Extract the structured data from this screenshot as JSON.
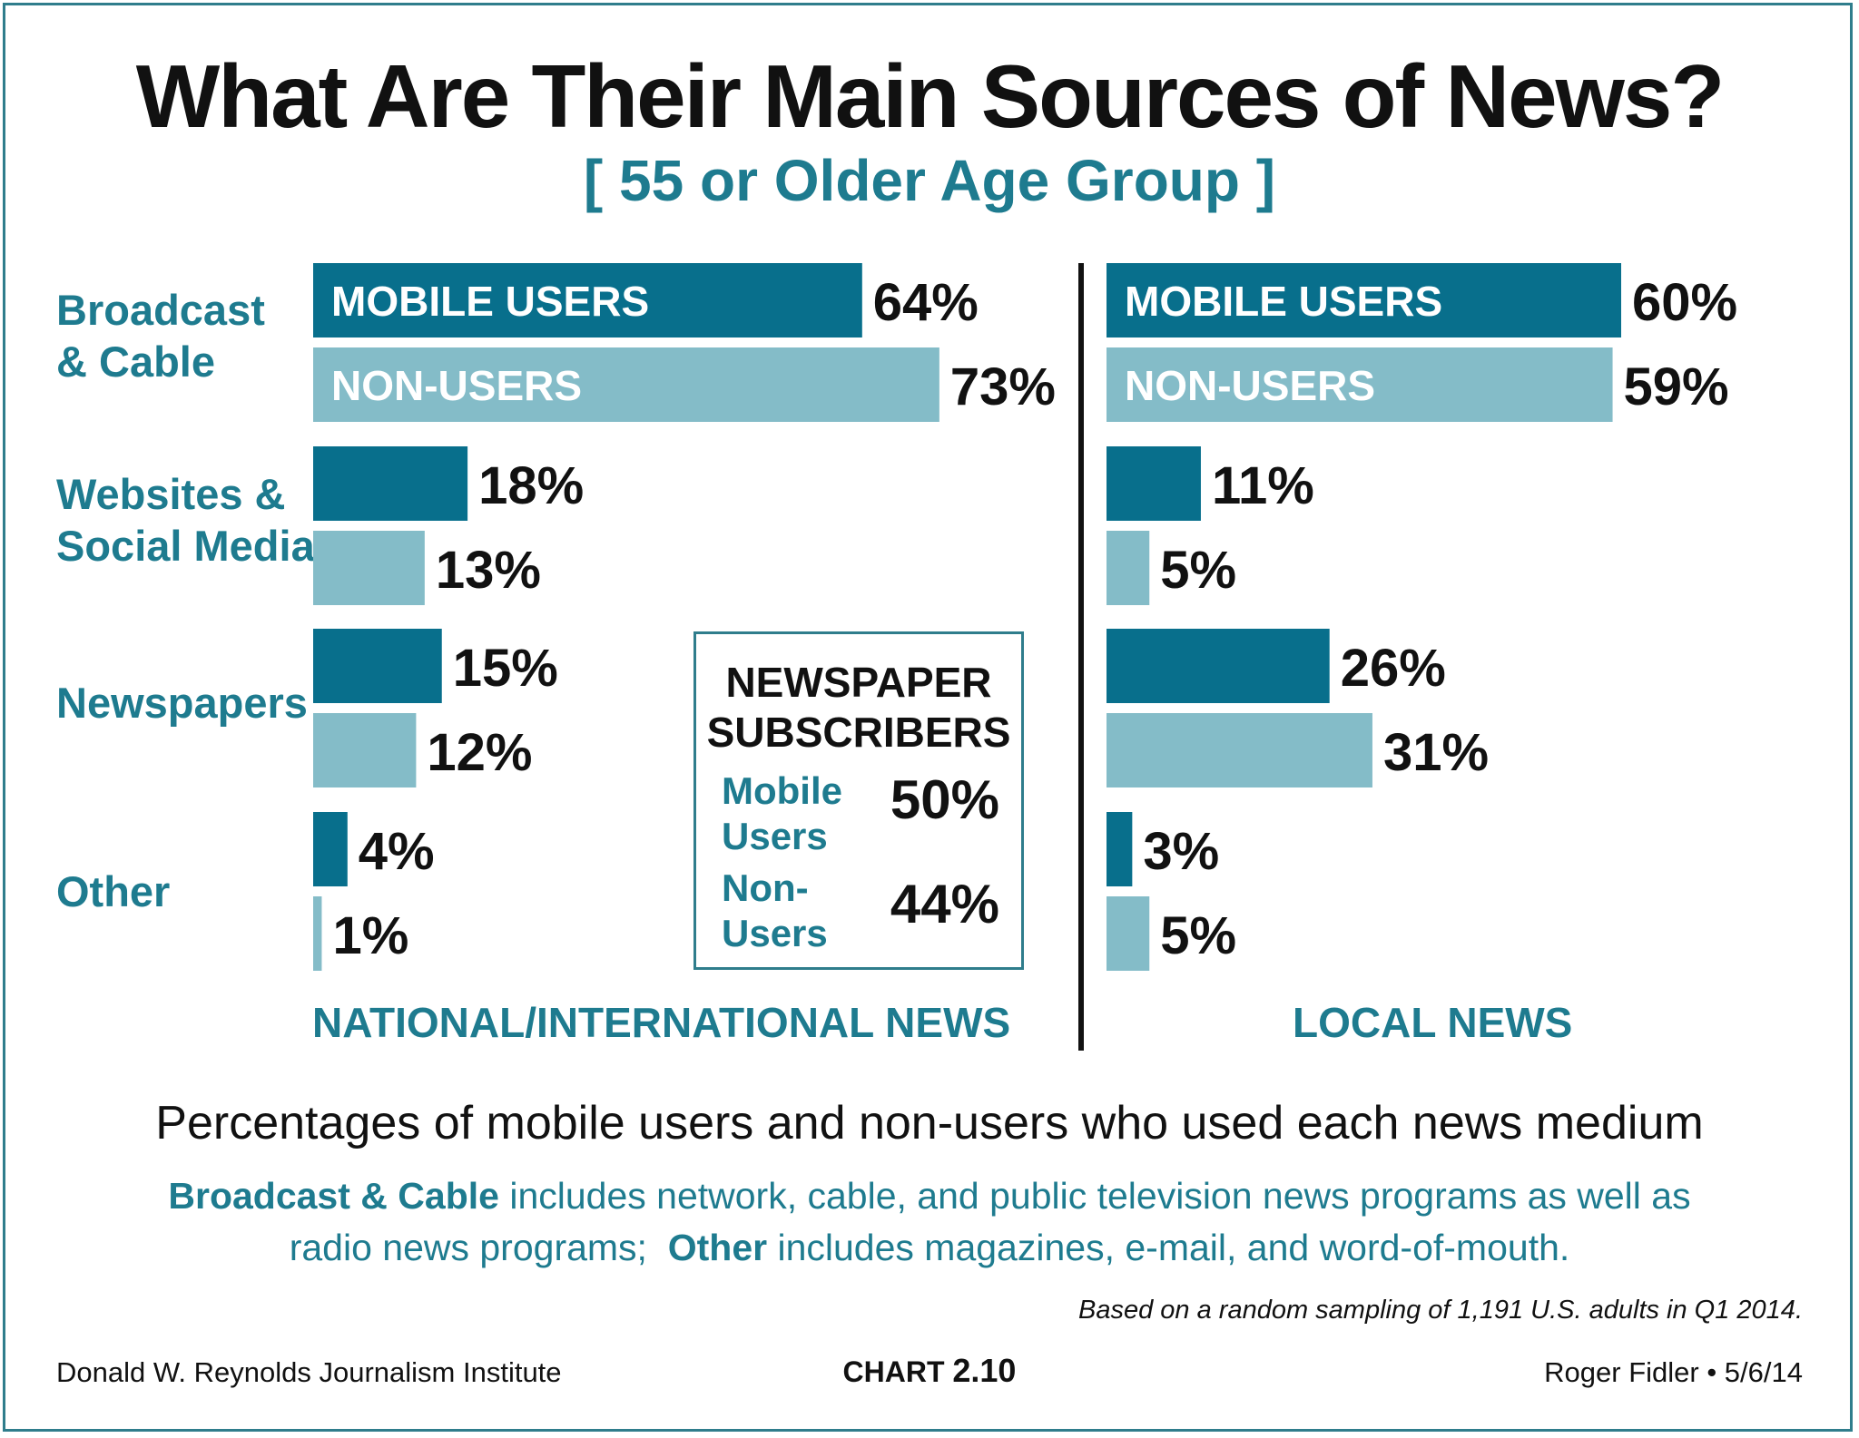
{
  "title": "What Are Their Main Sources of News?",
  "subtitle": "[ 55 or Older Age Group ]",
  "colors": {
    "mobile": "#086f8c",
    "nonusers": "#84bcc8",
    "accent": "#1e7b8f"
  },
  "chart_data": {
    "type": "bar",
    "orientation": "horizontal",
    "categories": [
      "Broadcast & Cable",
      "Websites & Social Media",
      "Newspapers",
      "Other"
    ],
    "series_labels": {
      "mobile": "MOBILE USERS",
      "nonusers": "NON-USERS"
    },
    "panels": [
      {
        "name": "NATIONAL/INTERNATIONAL NEWS",
        "series": [
          {
            "values": [
              64,
              18,
              15,
              4
            ],
            "labels": [
              "64%",
              "18%",
              "15%",
              "4%"
            ]
          },
          {
            "values": [
              73,
              13,
              12,
              1
            ],
            "labels": [
              "73%",
              "13%",
              "12%",
              "1%"
            ]
          }
        ]
      },
      {
        "name": "LOCAL NEWS",
        "series": [
          {
            "values": [
              60,
              11,
              26,
              3
            ],
            "labels": [
              "60%",
              "11%",
              "26%",
              "3%"
            ]
          },
          {
            "values": [
              59,
              5,
              31,
              5
            ],
            "labels": [
              "59%",
              "5%",
              "31%",
              "5%"
            ]
          }
        ]
      }
    ]
  },
  "category_lines": [
    [
      "Broadcast",
      "& Cable"
    ],
    [
      "Websites &",
      "Social Media"
    ],
    [
      "Newspapers"
    ],
    [
      "Other"
    ]
  ],
  "subscribers_box": {
    "title_line1": "NEWSPAPER",
    "title_line2": "SUBSCRIBERS",
    "mobile_line1": "Mobile",
    "mobile_line2": "Users",
    "mobile_value": "50%",
    "non_line1": "Non-",
    "non_line2": "Users",
    "non_value": "44%"
  },
  "caption": "Percentages of mobile users and non-users who used each news medium",
  "note": {
    "bc_term": "Broadcast & Cable",
    "bc_text": " includes network, cable, and public television news programs as well as",
    "line2_text": "radio news programs;  ",
    "other_term": "Other",
    "other_text": " includes magazines, e-mail, and word-of-mouth."
  },
  "source": "Based on a random sampling of 1,191 U.S. adults in Q1 2014.",
  "footer": {
    "left": "Donald W. Reynolds Journalism Institute",
    "chart_prefix": "CHART",
    "chart_number": "2.10",
    "right": "Roger Fidler • 5/6/14"
  }
}
